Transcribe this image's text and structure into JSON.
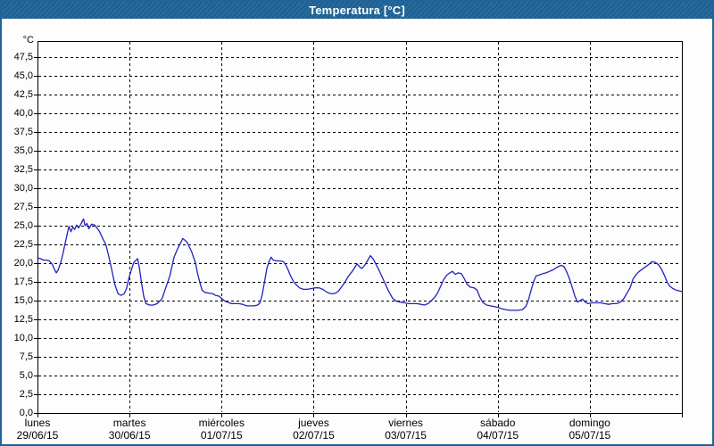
{
  "window": {
    "title": "Temperatura [°C]"
  },
  "colors": {
    "titlebar": "#1d6396",
    "window_border": "#21639a",
    "background": "#fcfdfc",
    "grid": "#000000",
    "axis": "#000000",
    "line": "#2222bf",
    "label_text": "#000000",
    "title_text": "#ffffff"
  },
  "chart_data": {
    "type": "line",
    "title": "Temperatura [°C]",
    "legend": "none",
    "grid": {
      "dashed": true,
      "on": true
    },
    "y_axis": {
      "unit_label": "°C",
      "min": 0,
      "max": 47.5,
      "step": 2.5,
      "decimal_separator": ",",
      "tick_labels": [
        "0,0",
        "2,5",
        "5,0",
        "7,5",
        "10,0",
        "12,5",
        "15,0",
        "17,5",
        "20,0",
        "22,5",
        "25,0",
        "27,5",
        "30,0",
        "32,5",
        "35,0",
        "37,5",
        "40,0",
        "42,5",
        "45,0",
        "47,5"
      ]
    },
    "x_axis": {
      "hours_total": 168,
      "days": [
        {
          "name": "lunes",
          "date": "29/06/15"
        },
        {
          "name": "martes",
          "date": "30/06/15"
        },
        {
          "name": "miércoles",
          "date": "01/07/15"
        },
        {
          "name": "jueves",
          "date": "02/07/15"
        },
        {
          "name": "viernes",
          "date": "03/07/15"
        },
        {
          "name": "sábado",
          "date": "04/07/15"
        },
        {
          "name": "domingo",
          "date": "05/07/15"
        }
      ]
    },
    "series": [
      {
        "name": "Temperatura",
        "color": "#2222bf",
        "units": [
          "hours_since_monday_00",
          "celsius"
        ],
        "points": [
          [
            0,
            20.7
          ],
          [
            0.8,
            20.6
          ],
          [
            1.6,
            20.4
          ],
          [
            2.4,
            20.4
          ],
          [
            3.1,
            20.3
          ],
          [
            3.9,
            19.8
          ],
          [
            4.4,
            19.2
          ],
          [
            4.9,
            18.7
          ],
          [
            5.4,
            19.1
          ],
          [
            6,
            20
          ],
          [
            6.6,
            21.2
          ],
          [
            7.2,
            22.6
          ],
          [
            7.8,
            24
          ],
          [
            8.2,
            24.9
          ],
          [
            8.7,
            24.2
          ],
          [
            9.2,
            24.8
          ],
          [
            9.7,
            24.5
          ],
          [
            10.2,
            25.1
          ],
          [
            10.7,
            24.7
          ],
          [
            11.3,
            25.2
          ],
          [
            12,
            25.9
          ],
          [
            12.4,
            25
          ],
          [
            12.9,
            25.3
          ],
          [
            13.4,
            24.6
          ],
          [
            14.1,
            25.2
          ],
          [
            14.9,
            25.1
          ],
          [
            15.5,
            24.7
          ],
          [
            16.2,
            24.2
          ],
          [
            17,
            23.3
          ],
          [
            17.8,
            22.5
          ],
          [
            18.6,
            20.9
          ],
          [
            19.4,
            19
          ],
          [
            20.2,
            17.1
          ],
          [
            21,
            15.9
          ],
          [
            21.8,
            15.7
          ],
          [
            22.6,
            15.9
          ],
          [
            23.2,
            16.6
          ],
          [
            24,
            18.3
          ],
          [
            25.1,
            20.1
          ],
          [
            26.1,
            20.6
          ],
          [
            26.6,
            19.3
          ],
          [
            27.1,
            17.4
          ],
          [
            27.7,
            15.6
          ],
          [
            28.3,
            14.6
          ],
          [
            29.2,
            14.4
          ],
          [
            30.2,
            14.4
          ],
          [
            31.2,
            14.6
          ],
          [
            32,
            15
          ],
          [
            32.5,
            15.3
          ],
          [
            33.3,
            16.5
          ],
          [
            34.5,
            18.3
          ],
          [
            35.6,
            20.8
          ],
          [
            36.7,
            22.1
          ],
          [
            37.9,
            23.3
          ],
          [
            39,
            22.8
          ],
          [
            40.2,
            21.5
          ],
          [
            41.2,
            20
          ],
          [
            41.7,
            18.7
          ],
          [
            42.4,
            17.3
          ],
          [
            42.9,
            16.4
          ],
          [
            43.6,
            16.1
          ],
          [
            44.7,
            16
          ],
          [
            45.8,
            15.9
          ],
          [
            46.4,
            15.7
          ],
          [
            47.3,
            15.6
          ],
          [
            48.2,
            15.2
          ],
          [
            48.9,
            14.9
          ],
          [
            49.6,
            14.8
          ],
          [
            50.5,
            14.6
          ],
          [
            51.5,
            14.6
          ],
          [
            52.5,
            14.6
          ],
          [
            53.5,
            14.5
          ],
          [
            54.5,
            14.3
          ],
          [
            55.5,
            14.3
          ],
          [
            56.5,
            14.3
          ],
          [
            57.4,
            14.4
          ],
          [
            58,
            14.7
          ],
          [
            58.6,
            15.8
          ],
          [
            59.2,
            17.5
          ],
          [
            59.8,
            19.3
          ],
          [
            60.3,
            20.1
          ],
          [
            60.9,
            20.8
          ],
          [
            61.5,
            20.4
          ],
          [
            62.3,
            20.3
          ],
          [
            63.2,
            20.3
          ],
          [
            64.1,
            20.2
          ],
          [
            64.8,
            19.7
          ],
          [
            65.5,
            18.9
          ],
          [
            66,
            18.3
          ],
          [
            66.8,
            17.5
          ],
          [
            67.5,
            17.1
          ],
          [
            68.3,
            16.7
          ],
          [
            69.3,
            16.5
          ],
          [
            70.3,
            16.5
          ],
          [
            71.3,
            16.6
          ],
          [
            72.3,
            16.7
          ],
          [
            73.4,
            16.7
          ],
          [
            74.4,
            16.5
          ],
          [
            75.2,
            16.2
          ],
          [
            76,
            16
          ],
          [
            76.9,
            15.9
          ],
          [
            77.7,
            16
          ],
          [
            78.5,
            16.3
          ],
          [
            79.4,
            16.9
          ],
          [
            80.2,
            17.5
          ],
          [
            81,
            18.2
          ],
          [
            81.9,
            18.8
          ],
          [
            82.7,
            19.4
          ],
          [
            83.3,
            19.9
          ],
          [
            84,
            19.5
          ],
          [
            84.6,
            19.3
          ],
          [
            85.3,
            19.7
          ],
          [
            86,
            20.3
          ],
          [
            86.8,
            21
          ],
          [
            87.6,
            20.5
          ],
          [
            88.3,
            19.8
          ],
          [
            89.1,
            19
          ],
          [
            89.9,
            18.1
          ],
          [
            90.8,
            17.1
          ],
          [
            91.7,
            16.1
          ],
          [
            92.6,
            15.3
          ],
          [
            93.6,
            14.9
          ],
          [
            94.6,
            14.8
          ],
          [
            95.7,
            14.7
          ],
          [
            96.7,
            14.6
          ],
          [
            97.8,
            14.6
          ],
          [
            98.9,
            14.6
          ],
          [
            100,
            14.5
          ],
          [
            100.9,
            14.4
          ],
          [
            101.8,
            14.6
          ],
          [
            102.7,
            15
          ],
          [
            103.5,
            15.4
          ],
          [
            104.3,
            16
          ],
          [
            105.1,
            16.9
          ],
          [
            105.9,
            17.8
          ],
          [
            106.7,
            18.4
          ],
          [
            107.5,
            18.7
          ],
          [
            108.2,
            18.9
          ],
          [
            108.9,
            18.5
          ],
          [
            109.7,
            18.7
          ],
          [
            110.5,
            18.6
          ],
          [
            111.2,
            18
          ],
          [
            112,
            17.2
          ],
          [
            112.8,
            16.8
          ],
          [
            113.8,
            16.7
          ],
          [
            114.6,
            16.4
          ],
          [
            115.4,
            15.4
          ],
          [
            116.2,
            14.7
          ],
          [
            117.1,
            14.4
          ],
          [
            118.1,
            14.3
          ],
          [
            119.1,
            14.2
          ],
          [
            120.1,
            14.1
          ],
          [
            121.1,
            13.9
          ],
          [
            122.1,
            13.8
          ],
          [
            123.1,
            13.7
          ],
          [
            124.2,
            13.7
          ],
          [
            125.3,
            13.7
          ],
          [
            126.4,
            13.8
          ],
          [
            127.3,
            14.2
          ],
          [
            128,
            15.1
          ],
          [
            128.7,
            16.4
          ],
          [
            129.4,
            17.6
          ],
          [
            130,
            18.3
          ],
          [
            130.8,
            18.4
          ],
          [
            131.7,
            18.6
          ],
          [
            132.6,
            18.7
          ],
          [
            133.5,
            18.9
          ],
          [
            134.4,
            19.1
          ],
          [
            135.3,
            19.4
          ],
          [
            136,
            19.6
          ],
          [
            136.6,
            19.7
          ],
          [
            137.3,
            19.5
          ],
          [
            138,
            18.8
          ],
          [
            138.7,
            17.9
          ],
          [
            139.4,
            16.8
          ],
          [
            140.1,
            15.6
          ],
          [
            140.8,
            14.8
          ],
          [
            141.5,
            15
          ],
          [
            142.1,
            15.2
          ],
          [
            142.8,
            14.8
          ],
          [
            143.6,
            14.6
          ],
          [
            144.6,
            14.7
          ],
          [
            145.7,
            14.7
          ],
          [
            146.8,
            14.7
          ],
          [
            147.9,
            14.6
          ],
          [
            148.9,
            14.5
          ],
          [
            149.9,
            14.6
          ],
          [
            151,
            14.6
          ],
          [
            152,
            14.8
          ],
          [
            152.9,
            15.3
          ],
          [
            153.7,
            16
          ],
          [
            154.5,
            16.7
          ],
          [
            155.3,
            17.9
          ],
          [
            156.1,
            18.5
          ],
          [
            156.9,
            18.9
          ],
          [
            157.7,
            19.2
          ],
          [
            158.5,
            19.5
          ],
          [
            159.3,
            19.8
          ],
          [
            160.2,
            20.2
          ],
          [
            161.1,
            20.1
          ],
          [
            161.9,
            19.8
          ],
          [
            162.7,
            19.2
          ],
          [
            163.5,
            18.3
          ],
          [
            164.2,
            17.4
          ],
          [
            164.9,
            16.9
          ],
          [
            165.7,
            16.6
          ],
          [
            166.5,
            16.4
          ],
          [
            167.3,
            16.3
          ],
          [
            168,
            16.2
          ]
        ]
      }
    ]
  }
}
